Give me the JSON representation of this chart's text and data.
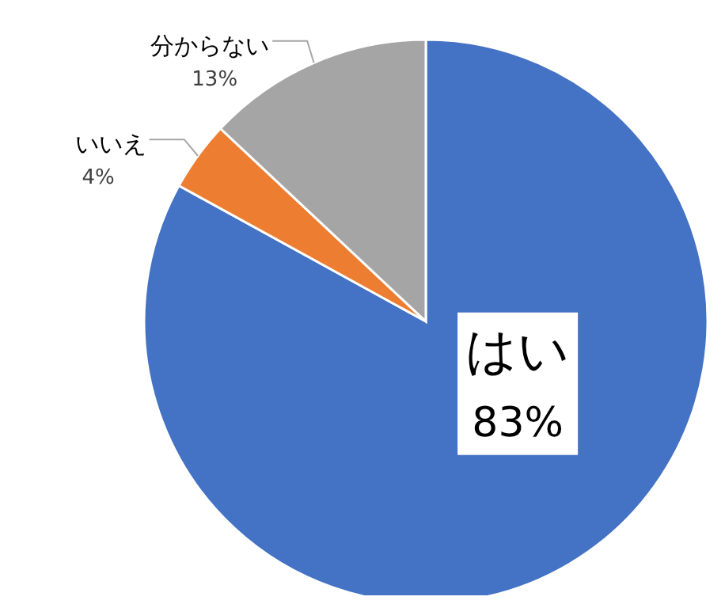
{
  "chart_data": {
    "type": "pie",
    "categories": [
      "はい",
      "いいえ",
      "分からない"
    ],
    "values": [
      83,
      4,
      13
    ],
    "colors": [
      "#4472c4",
      "#ed7d31",
      "#a5a5a5"
    ],
    "value_labels": [
      "83%",
      "4%",
      "13%"
    ]
  }
}
